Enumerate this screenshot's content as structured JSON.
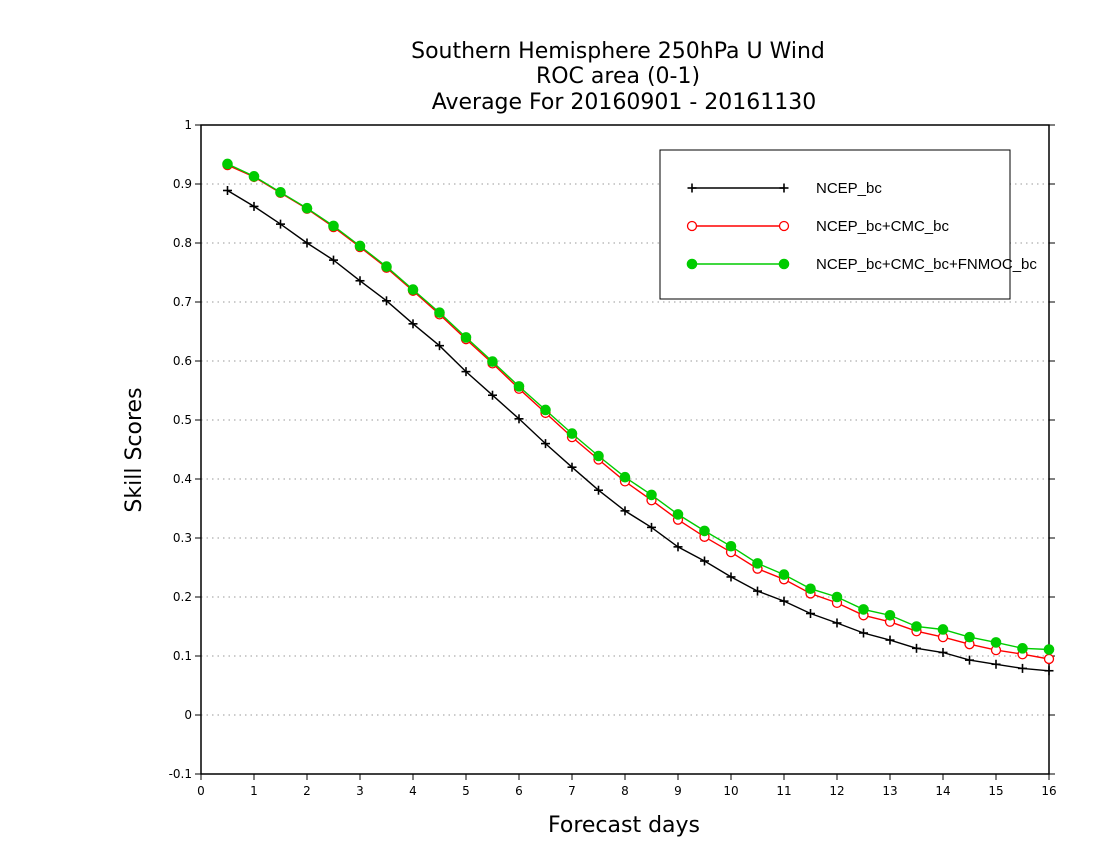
{
  "chart_data": {
    "type": "line",
    "title": [
      "Southern Hemisphere 250hPa U Wind",
      "ROC area (0-1)",
      "Average For 20160901 - 20161130"
    ],
    "xlabel": "Forecast days",
    "ylabel": "Skill Scores",
    "xlim": [
      0,
      16
    ],
    "ylim": [
      -0.1,
      1
    ],
    "xticks": [
      0,
      1,
      2,
      3,
      4,
      5,
      6,
      7,
      8,
      9,
      10,
      11,
      12,
      13,
      14,
      15,
      16
    ],
    "yticks": [
      -0.1,
      0,
      0.1,
      0.2,
      0.3,
      0.4,
      0.5,
      0.6,
      0.7,
      0.8,
      0.9,
      1
    ],
    "ytick_labels": [
      "-0.1",
      "0",
      "0.1",
      "0.2",
      "0.3",
      "0.4",
      "0.5",
      "0.6",
      "0.7",
      "0.8",
      "0.9",
      "1"
    ],
    "grid": "horizontal dotted",
    "legend_position": "top-right",
    "x": [
      0.5,
      1,
      1.5,
      2,
      2.5,
      3,
      3.5,
      4,
      4.5,
      5,
      5.5,
      6,
      6.5,
      7,
      7.5,
      8,
      8.5,
      9,
      9.5,
      10,
      10.5,
      11,
      11.5,
      12,
      12.5,
      13,
      13.5,
      14,
      14.5,
      15,
      15.5,
      16
    ],
    "series": [
      {
        "name": "NCEP_bc",
        "color": "#000000",
        "marker": "plus",
        "values": [
          0.889,
          0.862,
          0.832,
          0.8,
          0.771,
          0.736,
          0.702,
          0.663,
          0.626,
          0.582,
          0.542,
          0.502,
          0.46,
          0.42,
          0.381,
          0.346,
          0.318,
          0.285,
          0.261,
          0.234,
          0.21,
          0.193,
          0.172,
          0.156,
          0.139,
          0.127,
          0.113,
          0.106,
          0.093,
          0.086,
          0.079,
          0.075
        ]
      },
      {
        "name": "NCEP_bc+CMC_bc",
        "color": "#ff0000",
        "marker": "open-circle",
        "values": [
          0.932,
          0.912,
          0.885,
          0.858,
          0.827,
          0.793,
          0.758,
          0.719,
          0.679,
          0.637,
          0.596,
          0.553,
          0.512,
          0.471,
          0.433,
          0.396,
          0.364,
          0.331,
          0.302,
          0.276,
          0.248,
          0.23,
          0.206,
          0.19,
          0.169,
          0.158,
          0.142,
          0.132,
          0.12,
          0.11,
          0.103,
          0.095
        ]
      },
      {
        "name": "NCEP_bc+CMC_bc+FNMOC_bc",
        "color": "#00cc00",
        "marker": "filled-circle",
        "values": [
          0.934,
          0.913,
          0.886,
          0.859,
          0.829,
          0.795,
          0.76,
          0.721,
          0.682,
          0.64,
          0.599,
          0.557,
          0.517,
          0.477,
          0.439,
          0.403,
          0.373,
          0.34,
          0.312,
          0.286,
          0.257,
          0.238,
          0.214,
          0.2,
          0.179,
          0.169,
          0.15,
          0.145,
          0.132,
          0.123,
          0.113,
          0.111
        ]
      }
    ]
  }
}
